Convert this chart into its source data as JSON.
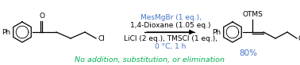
{
  "fig_width": 3.78,
  "fig_height": 0.83,
  "dpi": 100,
  "bg_color": "#ffffff",
  "above_line1": "MesMgBr (1 eq.),",
  "above_line2": "1,4-Dioxane (1.05 eq.)",
  "below_line1": "LiCl (2 eq.), TMSCl (1 eq.),",
  "below_line2": "0 °C, 1 h",
  "bottom_note": "No addition, substitution, or elimination",
  "yield_text": "80%",
  "above_color": "#4472c4",
  "below_color1": "#000000",
  "below_color2": "#4472c4",
  "note_color": "#00b050",
  "yield_color": "#4472c4",
  "text_fontsize": 6.5,
  "note_fontsize": 6.8,
  "yield_fontsize": 7.5
}
